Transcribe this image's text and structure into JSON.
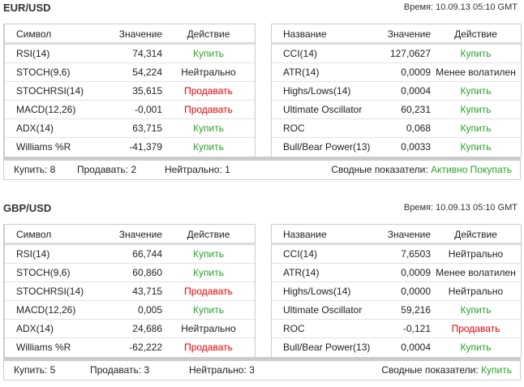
{
  "sections": [
    {
      "pair": "EUR/USD",
      "time": "Время: 10.09.13 05:10 GMT",
      "left": {
        "headers": [
          "Символ",
          "Значение",
          "Действие"
        ],
        "rows": [
          [
            "RSI(14)",
            "74,314",
            "Купить"
          ],
          [
            "STOCH(9,6)",
            "54,224",
            "Нейтрально"
          ],
          [
            "STOCHRSI(14)",
            "35,615",
            "Продавать"
          ],
          [
            "MACD(12,26)",
            "-0,001",
            "Продавать"
          ],
          [
            "ADX(14)",
            "63,715",
            "Купить"
          ],
          [
            "Williams %R",
            "-41,379",
            "Купить"
          ]
        ]
      },
      "right": {
        "headers": [
          "Название",
          "Значение",
          "Действие"
        ],
        "rows": [
          [
            "CCI(14)",
            "127,0627",
            "Купить"
          ],
          [
            "ATR(14)",
            "0,0009",
            "Менее волатилен"
          ],
          [
            "Highs/Lows(14)",
            "0,0004",
            "Купить"
          ],
          [
            "Ultimate Oscillator",
            "60,231",
            "Купить"
          ],
          [
            "ROC",
            "0,068",
            "Купить"
          ],
          [
            "Bull/Bear Power(13)",
            "0,0033",
            "Купить"
          ]
        ]
      },
      "summary": {
        "buy": "Купить: 8",
        "sell": "Продавать: 2",
        "neutral": "Нейтрально: 1",
        "label": "Сводные показатели:",
        "value": "Активно Покупать"
      }
    },
    {
      "pair": "GBP/USD",
      "time": "Время: 10.09.13 05:10 GMT",
      "left": {
        "headers": [
          "Символ",
          "Значение",
          "Действие"
        ],
        "rows": [
          [
            "RSI(14)",
            "66,744",
            "Купить"
          ],
          [
            "STOCH(9,6)",
            "60,860",
            "Купить"
          ],
          [
            "STOCHRSI(14)",
            "43,715",
            "Продавать"
          ],
          [
            "MACD(12,26)",
            "0,005",
            "Купить"
          ],
          [
            "ADX(14)",
            "24,686",
            "Нейтрально"
          ],
          [
            "Williams %R",
            "-62,222",
            "Продавать"
          ]
        ]
      },
      "right": {
        "headers": [
          "Название",
          "Значение",
          "Действие"
        ],
        "rows": [
          [
            "CCI(14)",
            "7,6503",
            "Нейтрально"
          ],
          [
            "ATR(14)",
            "0,0009",
            "Менее волатилен"
          ],
          [
            "Highs/Lows(14)",
            "0,0000",
            "Нейтрально"
          ],
          [
            "Ultimate Oscillator",
            "59,216",
            "Купить"
          ],
          [
            "ROC",
            "-0,121",
            "Продавать"
          ],
          [
            "Bull/Bear Power(13)",
            "0,0004",
            "Купить"
          ]
        ]
      },
      "summary": {
        "buy": "Купить: 5",
        "sell": "Продавать: 3",
        "neutral": "Нейтрально: 3",
        "label": "Сводные показатели:",
        "value": "Купить"
      }
    }
  ],
  "colors": {
    "buy": "#2aa32a",
    "sell": "#e60000"
  }
}
